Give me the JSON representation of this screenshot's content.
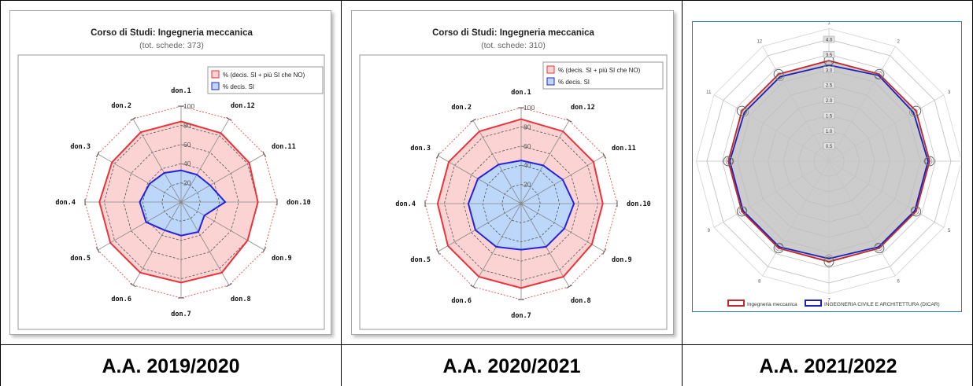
{
  "captions": [
    "A.A. 2019/2020",
    "A.A. 2020/2021",
    "A.A. 2021/2022"
  ],
  "charts": {
    "c1": {
      "title": "Corso di Studi: Ingegneria meccanica",
      "subtitle": "(tot. schede: 373)",
      "legend": [
        "% (decis. SI + più SI che NO)",
        "% decis. SI"
      ]
    },
    "c2": {
      "title": "Corso di Studi: Ingegneria meccanica",
      "subtitle": "(tot. schede: 310)",
      "legend": [
        "% (decis. SI + più SI che NO)",
        "% decis. SI"
      ]
    },
    "c3": {
      "legend": [
        "Ingegneria meccanica",
        "INGEGNERIA CIVILE E ARCHITETTURA (DICAR)"
      ]
    }
  },
  "chart_data": [
    {
      "type": "radar",
      "title": "Corso di Studi: Ingegneria meccanica",
      "subtitle": "(tot. schede: 373)",
      "categories": [
        "don.1",
        "don.12",
        "don.11",
        "don.10",
        "don.9",
        "don.8",
        "don.7",
        "don.6",
        "don.5",
        "don.4",
        "don.3",
        "don.2"
      ],
      "rlim": [
        0,
        100
      ],
      "ticks": [
        "20",
        "40",
        "60",
        "80",
        "100"
      ],
      "legend_position": "top-right",
      "colors": {
        "outer": "#e8343a",
        "outer_fill": "#fcd3d3",
        "inner": "#2323e0",
        "inner_fill": "#bcd7fa",
        "max": "#e06060"
      },
      "series": [
        {
          "name": "% (decis. SI + più SI che NO)",
          "values": [
            84,
            83,
            82,
            80,
            80,
            85,
            84,
            85,
            85,
            85,
            83,
            84
          ]
        },
        {
          "name": "% decis. SI",
          "values": [
            33,
            33,
            35,
            46,
            28,
            36,
            35,
            34,
            42,
            43,
            38,
            35
          ]
        },
        {
          "values": [
            100,
            100,
            100,
            100,
            100,
            100,
            100,
            100,
            100,
            100,
            100,
            100
          ]
        }
      ]
    },
    {
      "type": "radar",
      "title": "Corso di Studi: Ingegneria meccanica",
      "subtitle": "(tot. schede: 310)",
      "categories": [
        "don.1",
        "don.12",
        "don.11",
        "don.10",
        "don.9",
        "don.8",
        "don.7",
        "don.6",
        "don.5",
        "don.4",
        "don.3",
        "don.2"
      ],
      "rlim": [
        0,
        100
      ],
      "ticks": [
        "20",
        "40",
        "60",
        "80",
        "100"
      ],
      "legend_position": "top-right",
      "colors": {
        "outer": "#e8343a",
        "outer_fill": "#fcd3d3",
        "inner": "#2323e0",
        "inner_fill": "#bcd7fa",
        "max": "#e06060"
      },
      "series": [
        {
          "name": "% (decis. SI + più SI che NO)",
          "values": [
            88,
            87,
            87,
            85,
            85,
            88,
            88,
            88,
            88,
            87,
            87,
            87
          ]
        },
        {
          "name": "% decis. SI",
          "values": [
            45,
            46,
            50,
            55,
            52,
            52,
            48,
            52,
            55,
            55,
            52,
            47
          ]
        },
        {
          "values": [
            100,
            100,
            100,
            100,
            100,
            100,
            100,
            100,
            100,
            100,
            100,
            100
          ]
        }
      ]
    },
    {
      "type": "radar",
      "categories": [
        "1",
        "2",
        "3",
        "4",
        "5",
        "6",
        "7",
        "8",
        "9",
        "10",
        "11",
        "12"
      ],
      "rlim": [
        0,
        4.0
      ],
      "ticks": [
        "0.5",
        "1.0",
        "1.5",
        "2.0",
        "2.5",
        "3.0",
        "3.5",
        "4.0"
      ],
      "legend_position": "bottom",
      "colors": {
        "s1": "#c0282d",
        "s2": "#2020b8",
        "fill": "#cccccc",
        "grid": "#d4d4d4",
        "frame": "#2a78c2"
      },
      "series": [
        {
          "name": "Ingegneria meccanica",
          "values": [
            3.3,
            3.3,
            3.3,
            3.3,
            3.3,
            3.3,
            3.3,
            3.3,
            3.3,
            3.3,
            3.3,
            3.3
          ]
        },
        {
          "name": "INGEGNERIA CIVILE E ARCHITETTURA (DICAR)",
          "values": [
            3.15,
            3.25,
            3.2,
            3.25,
            3.25,
            3.25,
            3.2,
            3.25,
            3.25,
            3.25,
            3.2,
            3.2
          ]
        }
      ]
    }
  ]
}
